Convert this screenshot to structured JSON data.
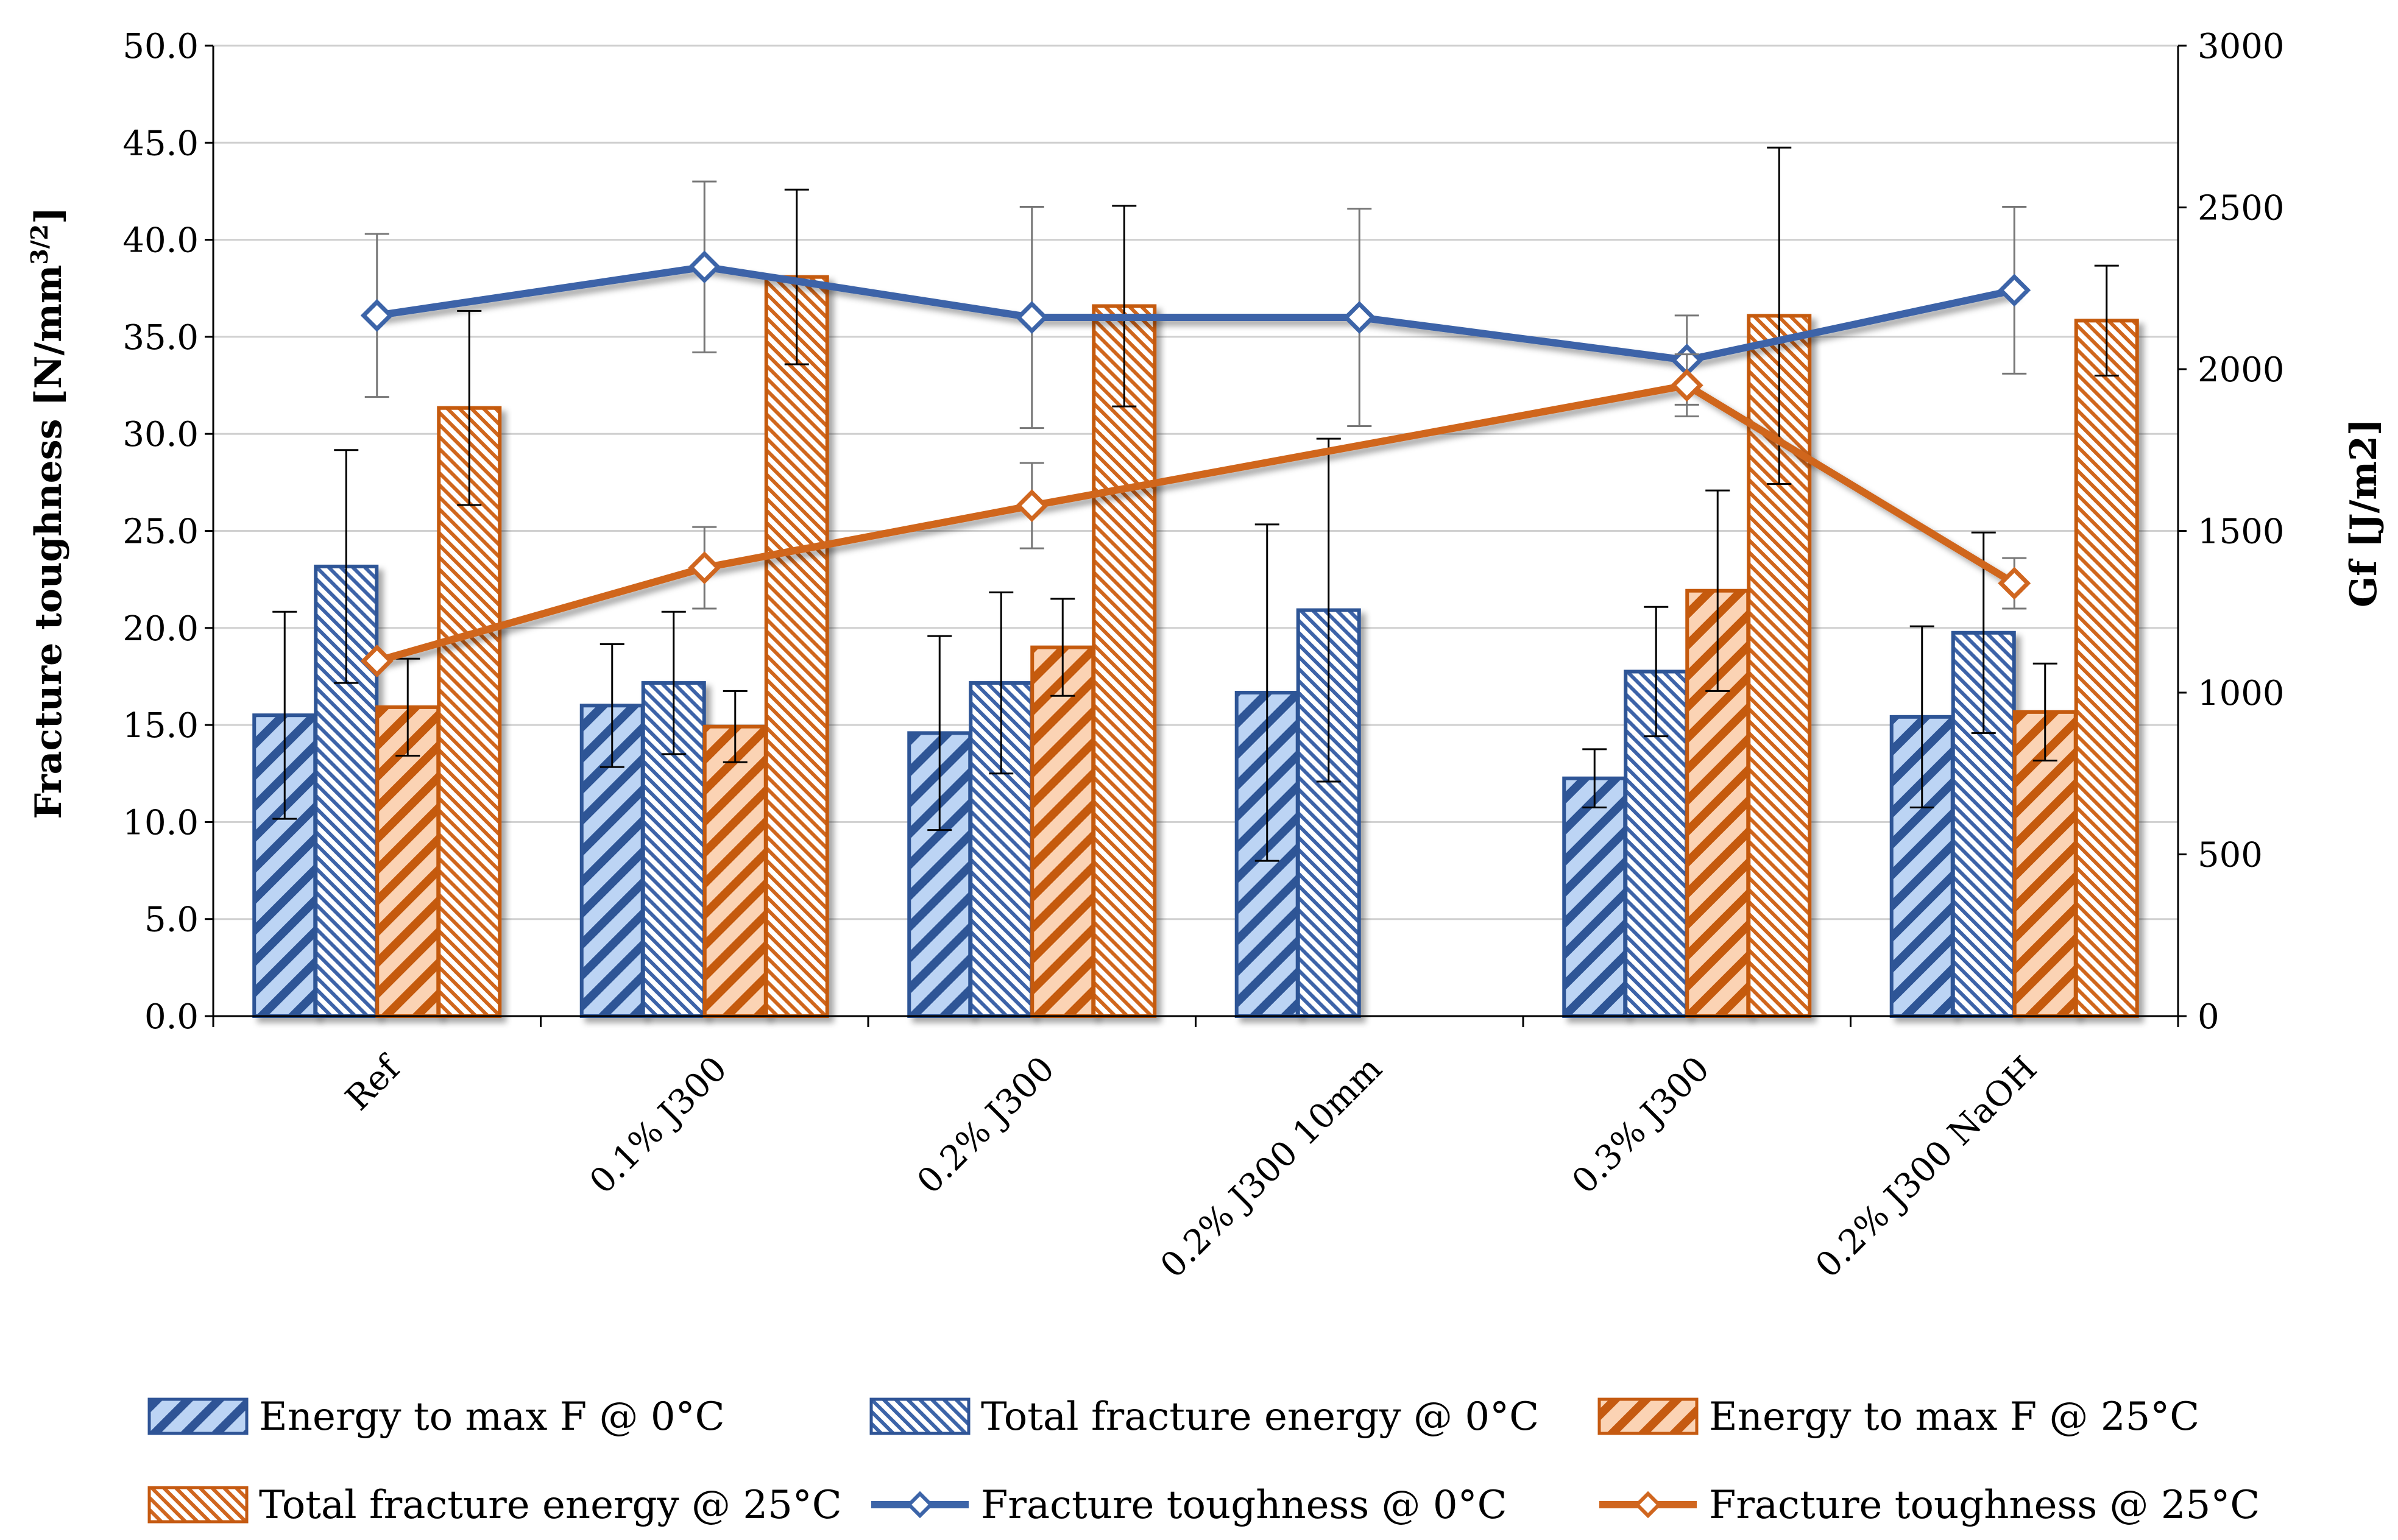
{
  "chart_data": {
    "type": "bar",
    "categories": [
      "Ref",
      "0.1% J300",
      "0.2% J300",
      "0.2% J300 10mm",
      "0.3% J300",
      "0.2% J300 NaOH"
    ],
    "y_left": {
      "label_main": "Fracture toughness [N/mm",
      "label_sup": "3/2",
      "label_end": "]",
      "range": [
        0,
        50
      ],
      "step": 5,
      "tick_labels": [
        "0.0",
        "5.0",
        "10.0",
        "15.0",
        "20.0",
        "25.0",
        "30.0",
        "35.0",
        "40.0",
        "45.0",
        "50.0"
      ]
    },
    "y_right": {
      "label": "Gf  [J/m2]",
      "range": [
        0,
        3000
      ],
      "step": 500,
      "tick_labels": [
        "0",
        "500",
        "1000",
        "1500",
        "2000",
        "2500",
        "3000"
      ]
    },
    "bar_series": [
      {
        "name": "Energy to max F @ 0°C",
        "pattern": "diag-blue",
        "values": [
          930,
          960,
          875,
          1000,
          735,
          925
        ],
        "err": [
          320,
          190,
          300,
          520,
          90,
          280
        ]
      },
      {
        "name": "Total fracture energy @ 0°C",
        "pattern": "dense-blue",
        "values": [
          1390,
          1030,
          1030,
          1255,
          1065,
          1185
        ],
        "err": [
          360,
          220,
          280,
          530,
          200,
          310
        ]
      },
      {
        "name": "Energy to max F @ 25°C",
        "pattern": "diag-orange",
        "values": [
          955,
          895,
          1140,
          null,
          1315,
          940
        ],
        "err": [
          150,
          110,
          150,
          null,
          310,
          150
        ]
      },
      {
        "name": "Total fracture energy @ 25°C",
        "pattern": "dense-orange",
        "values": [
          1880,
          2285,
          2195,
          null,
          2165,
          2150
        ],
        "err": [
          300,
          270,
          310,
          null,
          520,
          170
        ]
      }
    ],
    "line_series": [
      {
        "name": "Fracture toughness @ 0°C",
        "color": "#3c64a8",
        "values": [
          36.1,
          38.6,
          36.0,
          36.0,
          33.8,
          37.4
        ],
        "err": [
          4.2,
          4.4,
          5.7,
          5.6,
          2.3,
          4.3
        ]
      },
      {
        "name": "Fracture toughness @ 25°C",
        "color": "#d0661f",
        "values": [
          18.3,
          23.1,
          26.3,
          null,
          32.5,
          22.3
        ],
        "err": [
          null,
          2.1,
          2.2,
          null,
          1.6,
          1.3
        ]
      }
    ],
    "colors": {
      "blue_fill": "#bcd4f4",
      "blue_stroke": "#2f5496",
      "blue_line": "#3c64a8",
      "orange_fill": "#fbd3b4",
      "orange_stroke": "#c55a11",
      "orange_line": "#d0661f",
      "grid": "#d0d0d0"
    },
    "grid": true,
    "legend_position": "bottom"
  }
}
